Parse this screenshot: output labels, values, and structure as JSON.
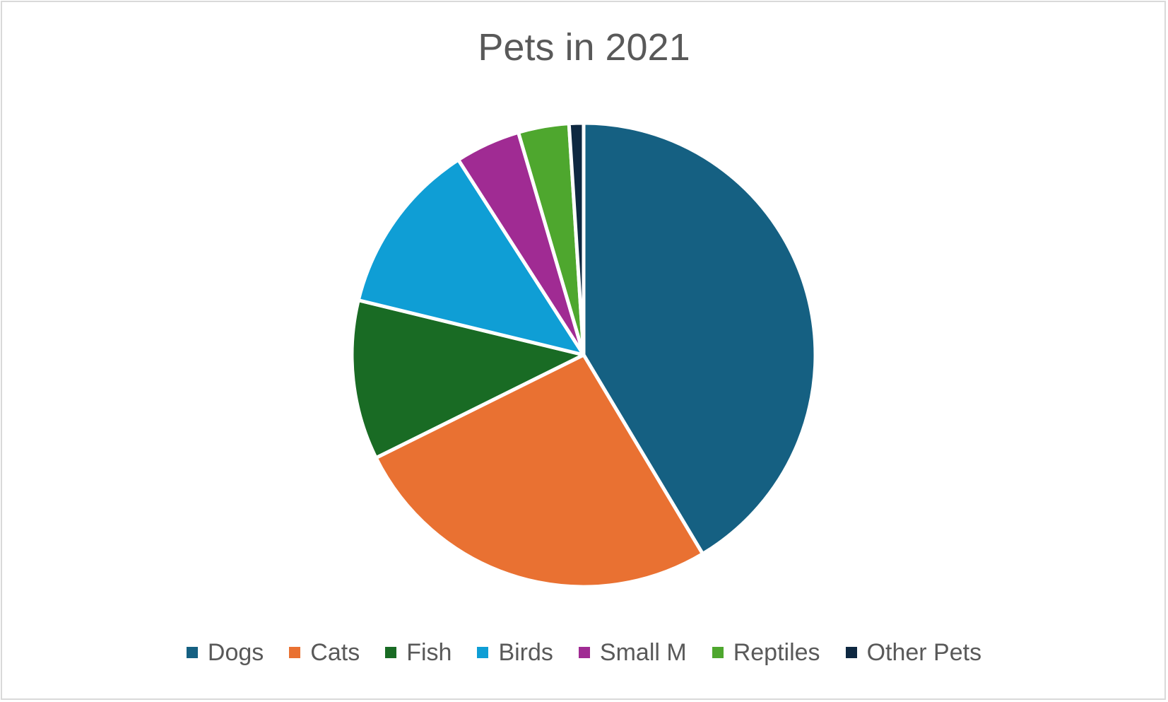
{
  "chart_data": {
    "type": "pie",
    "title": "Pets in 2021",
    "categories": [
      "Dogs",
      "Cats",
      "Fish",
      "Birds",
      "Small M",
      "Reptiles",
      "Other Pets"
    ],
    "values": [
      41,
      26,
      11,
      12,
      4.5,
      3.5,
      1
    ],
    "colors": [
      "#156082",
      "#E97132",
      "#196B24",
      "#0F9ED5",
      "#A02B93",
      "#4EA72E",
      "#0E2841"
    ],
    "legend_position": "bottom"
  }
}
